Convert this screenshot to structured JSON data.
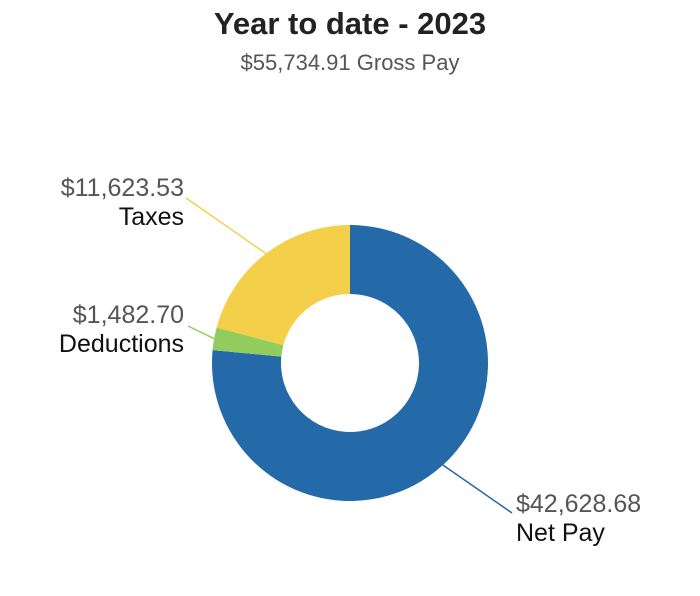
{
  "chart_data": {
    "type": "pie",
    "title": "Year to date - 2023",
    "subtitle": "$55,734.91 Gross Pay",
    "slices": [
      {
        "label": "Net Pay",
        "value": 42628.68,
        "amount_text": "$42,628.68",
        "color": "#2469a8"
      },
      {
        "label": "Deductions",
        "value": 1482.7,
        "amount_text": "$1,482.70",
        "color": "#92cc5c"
      },
      {
        "label": "Taxes",
        "value": 11623.53,
        "amount_text": "$11,623.53",
        "color": "#f4d04a"
      }
    ]
  }
}
